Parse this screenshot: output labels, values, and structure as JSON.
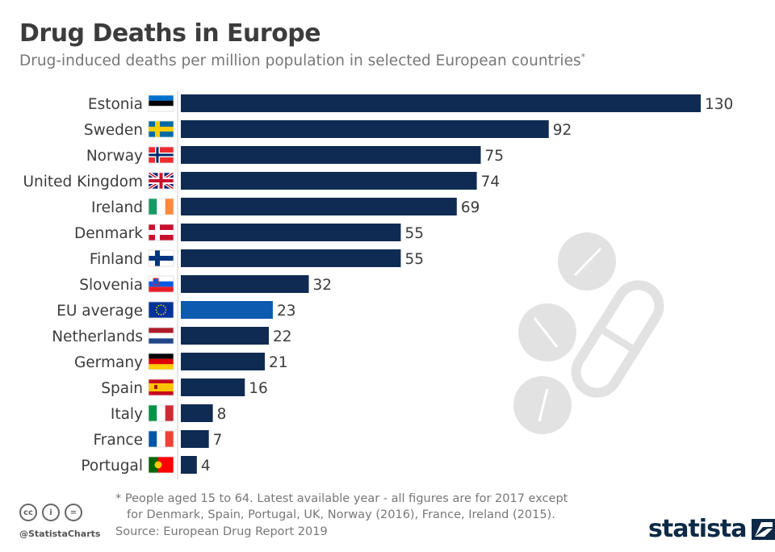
{
  "title": "Drug Deaths in Europe",
  "subtitle": "Drug-induced deaths per million population in selected European countries",
  "subtitle_mark": "*",
  "chart_data": {
    "type": "bar",
    "orientation": "horizontal",
    "categories": [
      "Estonia",
      "Sweden",
      "Norway",
      "United Kingdom",
      "Ireland",
      "Denmark",
      "Finland",
      "Slovenia",
      "EU average",
      "Netherlands",
      "Germany",
      "Spain",
      "Italy",
      "France",
      "Portugal"
    ],
    "values": [
      130,
      92,
      75,
      74,
      69,
      55,
      55,
      32,
      23,
      22,
      21,
      16,
      8,
      7,
      4
    ],
    "flags": [
      "flag-estonia",
      "flag-sweden",
      "flag-norway",
      "flag-uk",
      "flag-ireland",
      "flag-denmark",
      "flag-finland",
      "flag-slovenia",
      "flag-eu",
      "flag-netherlands",
      "flag-germany",
      "flag-spain",
      "flag-italy",
      "flag-france",
      "flag-portugal"
    ],
    "bar_color": "#0f2b53",
    "highlight_color": "#0d5bb0",
    "highlight_category": "EU average",
    "data_labels": true,
    "grid": false
  },
  "footer": {
    "note_line1": "* People aged 15 to 64. Latest available year - all figures are for 2017 except",
    "note_line2": "for Denmark, Spain, Portugal, UK, Norway (2016), France, Ireland (2015).",
    "source": "Source: European Drug Report 2019",
    "handle": "@StatistaCharts",
    "logo": "statista"
  }
}
